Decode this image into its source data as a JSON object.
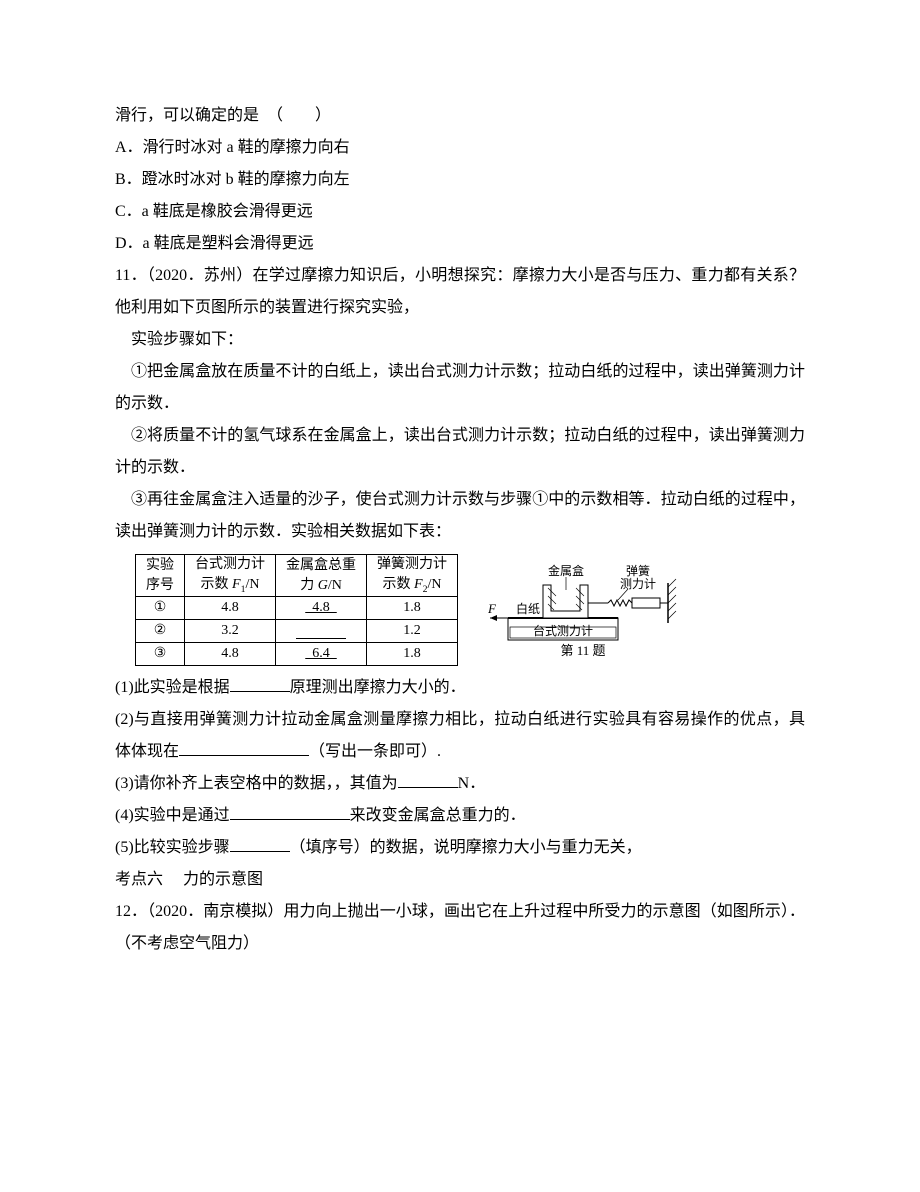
{
  "line1": "滑行，可以确定的是　（　　）",
  "optA": "A．滑行时冰对 a 鞋的摩擦力向右",
  "optB": "B．蹬冰时冰对 b 鞋的摩擦力向左",
  "optC": "C．a 鞋底是橡胶会滑得更远",
  "optD": "D．a 鞋底是塑料会滑得更远",
  "q11_intro": "11．（2020．苏州）在学过摩擦力知识后，小明想探究：摩擦力大小是否与压力、重力都有关系？他利用如下页图所示的装置进行探究实验，",
  "steps_title": "实验步骤如下：",
  "step1": "①把金属盒放在质量不计的白纸上，读出台式测力计示数；拉动白纸的过程中，读出弹簧测力计的示数．",
  "step2": "②将质量不计的氢气球系在金属盒上，读出台式测力计示数；拉动白纸的过程中，读出弹簧测力计的示数．",
  "step3": "③再往金属盒注入适量的沙子，使台式测力计示数与步骤①中的示数相等．拉动白纸的过程中，读出弹簧测力计的示数．实验相关数据如下表：",
  "table": {
    "headers": {
      "col1a": "实验",
      "col1b": "序号",
      "col2a": "台式测力计",
      "col2b_pre": "示数 ",
      "col2b_var": "F",
      "col2b_sub": "1",
      "col2b_post": "/N",
      "col3a": "金属盒总重",
      "col3b_pre": "力 ",
      "col3b_var": "G",
      "col3b_post": "/N",
      "col4a": "弹簧测力计",
      "col4b_pre": "示数 ",
      "col4b_var": "F",
      "col4b_sub": "2",
      "col4b_post": "/N"
    },
    "rows": [
      {
        "idx": "①",
        "f1": "4.8",
        "g": "4.8",
        "f2": "1.8",
        "g_blank": false
      },
      {
        "idx": "②",
        "f1": "3.2",
        "g": "",
        "f2": "1.2",
        "g_blank": true
      },
      {
        "idx": "③",
        "f1": "4.8",
        "g": "6.4",
        "f2": "1.8",
        "g_blank": false
      }
    ]
  },
  "diagram": {
    "label_metal": "金属盒",
    "label_spring_a": "弹簧",
    "label_spring_b": "测力计",
    "label_paper": "白纸",
    "label_F": "F",
    "label_table": "台式测力计",
    "caption": "第 11 题"
  },
  "sub1_a": "(1)此实验是根据",
  "sub1_b": "原理测出摩擦力大小的．",
  "sub2_a": "(2)与直接用弹簧测力计拉动金属盒测量摩擦力相比，拉动白纸进行实验具有容易操作的优点，具体体现在",
  "sub2_b": "（写出一条即可）.",
  "sub3_a": "(3)请你补齐上表空格中的数据，，其值为",
  "sub3_b": "N．",
  "sub4_a": "(4)实验中是通过",
  "sub4_b": "来改变金属盒总重力的．",
  "sub5_a": "(5)比较实验步骤",
  "sub5_b": "（填序号）的数据，说明摩擦力大小与重力无关，",
  "kp6": "考点六　 力的示意图",
  "q12": "12．（2020．南京模拟）用力向上抛出一小球，画出它在上升过程中所受力的示意图（如图所示）．（不考虑空气阻力）"
}
